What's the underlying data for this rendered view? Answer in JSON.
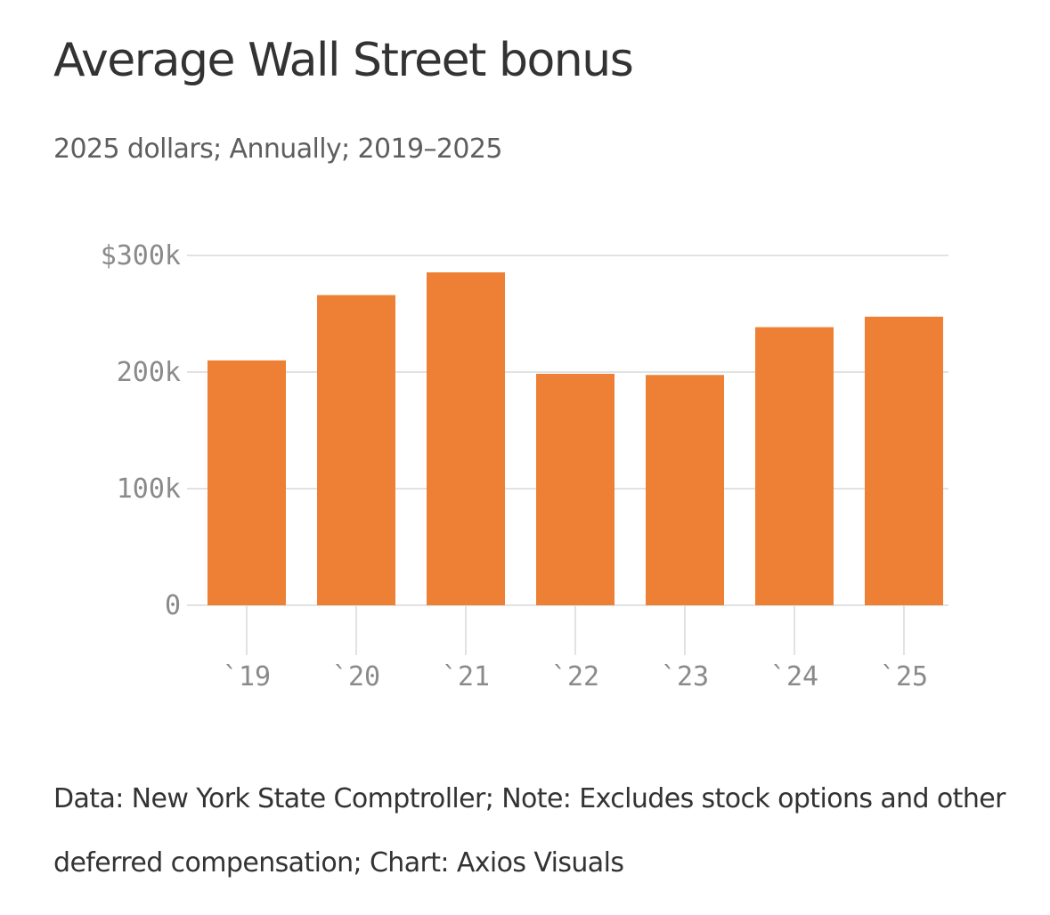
{
  "header": {
    "title": "Average Wall Street bonus",
    "subtitle": "2025 dollars; Annually; 2019–2025"
  },
  "footer": {
    "source": "Data: New York State Comptroller; Note: Excludes stock options and other deferred compensation; Chart: Axios Visuals"
  },
  "colors": {
    "bar": "#ED8034",
    "grid": "#d9d9d9",
    "text": "#333333",
    "tick": "#8a8a8a"
  },
  "chart_data": {
    "type": "bar",
    "categories": [
      "`19",
      "`20",
      "`21",
      "`22",
      "`23",
      "`24",
      "`25"
    ],
    "values": [
      210000,
      266000,
      285500,
      198500,
      197500,
      238500,
      247500
    ],
    "ylim": [
      0,
      300000
    ],
    "yticks": [
      0,
      100000,
      200000,
      300000
    ],
    "ytick_labels": [
      "0",
      "100k",
      "200k",
      "$300k"
    ],
    "title": "Average Wall Street bonus",
    "subtitle": "2025 dollars; Annually; 2019–2025",
    "xlabel": "",
    "ylabel": "",
    "grid": true,
    "legend": "none"
  }
}
